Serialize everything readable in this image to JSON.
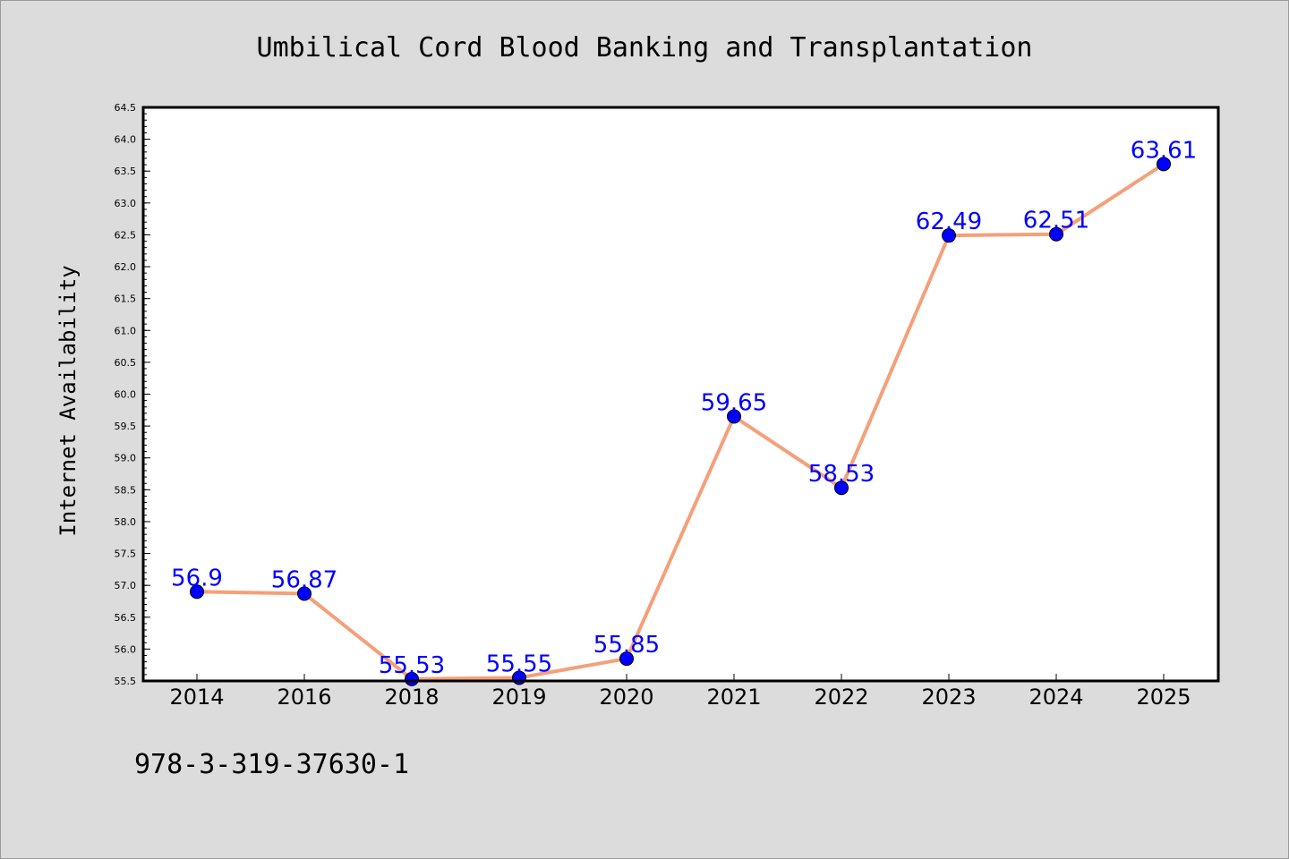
{
  "chart_data": {
    "type": "line",
    "title": "Umbilical Cord Blood Banking and Transplantation",
    "xlabel": "",
    "ylabel": "Internet Availability",
    "categories": [
      "2014",
      "2016",
      "2018",
      "2019",
      "2020",
      "2021",
      "2022",
      "2023",
      "2024",
      "2025"
    ],
    "values": [
      56.9,
      56.87,
      55.53,
      55.55,
      55.85,
      59.65,
      58.53,
      62.49,
      62.51,
      63.61
    ],
    "data_labels": [
      "56.9",
      "56.87",
      "55.53",
      "55.55",
      "55.85",
      "59.65",
      "58.53",
      "62.49",
      "62.51",
      "63.61"
    ],
    "ylim": [
      55.5,
      64.5
    ],
    "yticks": [
      "55.5",
      "56.0",
      "56.5",
      "57.0",
      "57.5",
      "58.0",
      "58.5",
      "59.0",
      "59.5",
      "60.0",
      "60.5",
      "61.0",
      "61.5",
      "62.0",
      "62.5",
      "63.0",
      "63.5",
      "64.0",
      "64.5"
    ],
    "grid": false,
    "legend": "none",
    "line_color": "#f4a07a",
    "marker_color": "#0000ff",
    "label_color": "#0000ff"
  },
  "footer_text": "978-3-319-37630-1"
}
